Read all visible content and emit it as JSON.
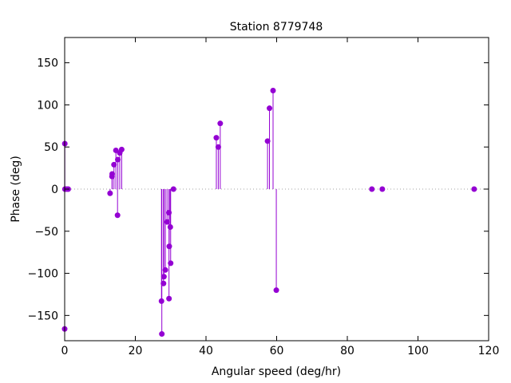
{
  "chart_data": {
    "type": "scatter",
    "style": "impulses-with-points",
    "title": "Station 8779748",
    "xlabel": "Angular speed (deg/hr)",
    "ylabel": "Phase (deg)",
    "xlim": [
      0,
      120
    ],
    "ylim": [
      -180,
      180
    ],
    "xticks": [
      0,
      20,
      40,
      60,
      80,
      100,
      120
    ],
    "yticks": [
      -150,
      -100,
      -50,
      0,
      50,
      100,
      150
    ],
    "grid": false,
    "zero_line": true,
    "series_color": "#9400d3",
    "zero_line_color": "#a0a0a0",
    "points": [
      {
        "x": 0.0,
        "y": -166
      },
      {
        "x": 0.04,
        "y": 54
      },
      {
        "x": 0.08,
        "y": 0
      },
      {
        "x": 0.55,
        "y": 0
      },
      {
        "x": 1.0,
        "y": 0
      },
      {
        "x": 12.85,
        "y": -5
      },
      {
        "x": 13.4,
        "y": 15
      },
      {
        "x": 13.45,
        "y": 18
      },
      {
        "x": 13.95,
        "y": 29
      },
      {
        "x": 14.5,
        "y": 46
      },
      {
        "x": 14.96,
        "y": -31
      },
      {
        "x": 15.04,
        "y": 35
      },
      {
        "x": 15.59,
        "y": 43
      },
      {
        "x": 16.14,
        "y": 47
      },
      {
        "x": 27.4,
        "y": -133
      },
      {
        "x": 27.5,
        "y": -172
      },
      {
        "x": 27.97,
        "y": -112
      },
      {
        "x": 28.1,
        "y": -104
      },
      {
        "x": 28.5,
        "y": -96
      },
      {
        "x": 28.98,
        "y": -39
      },
      {
        "x": 29.5,
        "y": -28
      },
      {
        "x": 29.53,
        "y": -130
      },
      {
        "x": 29.6,
        "y": -68
      },
      {
        "x": 29.9,
        "y": -45
      },
      {
        "x": 30.0,
        "y": -88
      },
      {
        "x": 30.8,
        "y": 0
      },
      {
        "x": 42.93,
        "y": 61
      },
      {
        "x": 43.48,
        "y": 50
      },
      {
        "x": 44.03,
        "y": 78
      },
      {
        "x": 57.42,
        "y": 57
      },
      {
        "x": 57.97,
        "y": 96
      },
      {
        "x": 58.98,
        "y": 117
      },
      {
        "x": 59.9,
        "y": -120
      },
      {
        "x": 86.95,
        "y": 0
      },
      {
        "x": 89.9,
        "y": 0
      },
      {
        "x": 115.9,
        "y": 0
      }
    ]
  }
}
